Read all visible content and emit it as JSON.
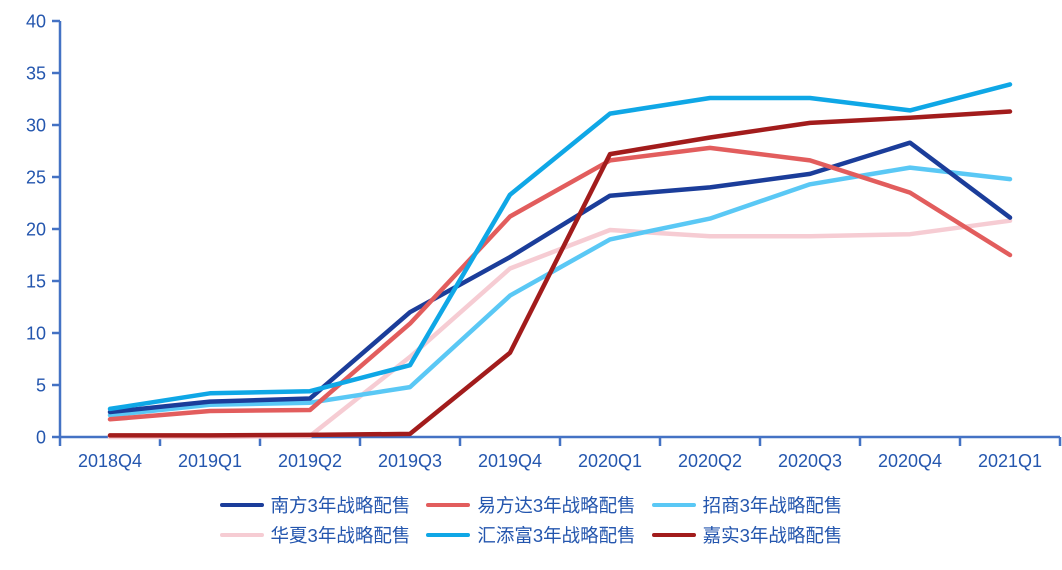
{
  "chart_data": {
    "type": "line",
    "title": "",
    "xlabel": "",
    "ylabel": "",
    "categories": [
      "2018Q4",
      "2019Q1",
      "2019Q2",
      "2019Q3",
      "2019Q4",
      "2020Q1",
      "2020Q2",
      "2020Q3",
      "2020Q4",
      "2021Q1"
    ],
    "series": [
      {
        "name": "南方3年战略配售",
        "color": "#1b3d9a",
        "values": [
          2.4,
          3.4,
          3.7,
          12.0,
          17.3,
          23.2,
          24.0,
          25.3,
          28.3,
          21.1
        ]
      },
      {
        "name": "易方达3年战略配售",
        "color": "#e25d5d",
        "values": [
          1.7,
          2.5,
          2.6,
          10.9,
          21.2,
          26.6,
          27.8,
          26.6,
          23.5,
          17.5
        ]
      },
      {
        "name": "招商3年战略配售",
        "color": "#5ac8f5",
        "values": [
          2.1,
          3.1,
          3.3,
          4.8,
          13.6,
          19.0,
          21.0,
          24.3,
          25.9,
          24.8
        ]
      },
      {
        "name": "华夏3年战略配售",
        "color": "#f6ccd3",
        "values": [
          0.0,
          0.0,
          0.1,
          7.7,
          16.2,
          19.9,
          19.3,
          19.3,
          19.5,
          20.8
        ]
      },
      {
        "name": "汇添富3年战略配售",
        "color": "#0fa7e6",
        "values": [
          2.7,
          4.2,
          4.4,
          6.9,
          23.3,
          31.1,
          32.6,
          32.6,
          31.4,
          33.9
        ]
      },
      {
        "name": "嘉实3年战略配售",
        "color": "#a21c1c",
        "values": [
          0.15,
          0.15,
          0.2,
          0.3,
          8.1,
          27.2,
          28.8,
          30.2,
          30.7,
          31.3
        ]
      }
    ],
    "ylim": [
      0,
      40
    ],
    "ytick_step": 5,
    "yticks": [
      0,
      5,
      10,
      15,
      20,
      25,
      30,
      35,
      40
    ],
    "grid": false,
    "legend_position": "bottom",
    "legend_rows": [
      [
        0,
        1,
        2
      ],
      [
        3,
        4,
        5
      ]
    ],
    "draw_order": [
      3,
      2,
      0,
      1,
      4,
      5
    ]
  },
  "style_colors": {
    "axis": "#4472c4",
    "tick_label": "#2456ae"
  }
}
